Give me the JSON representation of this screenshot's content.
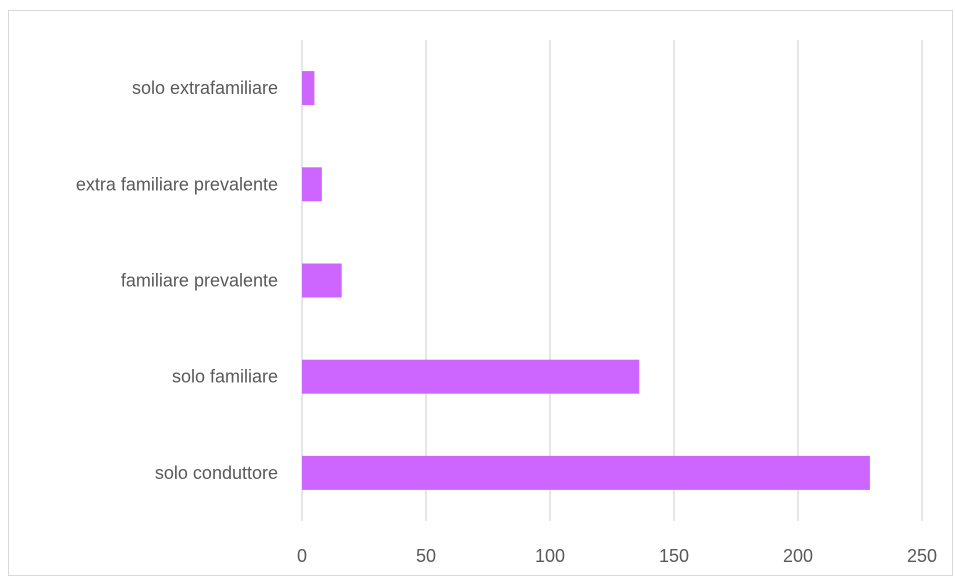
{
  "chart_data": {
    "type": "bar",
    "orientation": "horizontal",
    "categories": [
      "solo conduttore",
      "solo familiare",
      "familiare prevalente",
      "extra familiare prevalente",
      "solo extrafamiliare"
    ],
    "values": [
      229,
      136,
      16,
      8,
      5
    ],
    "title": "",
    "xlabel": "",
    "ylabel": "",
    "xlim": [
      0,
      250
    ],
    "xticks": [
      0,
      50,
      100,
      150,
      200,
      250
    ],
    "xtick_labels": [
      "0",
      "50",
      "100",
      "150",
      "200",
      "250"
    ],
    "grid": "vertical",
    "legend": "none",
    "bar_color": "#cc66ff",
    "grid_color": "#d9d9d9"
  }
}
